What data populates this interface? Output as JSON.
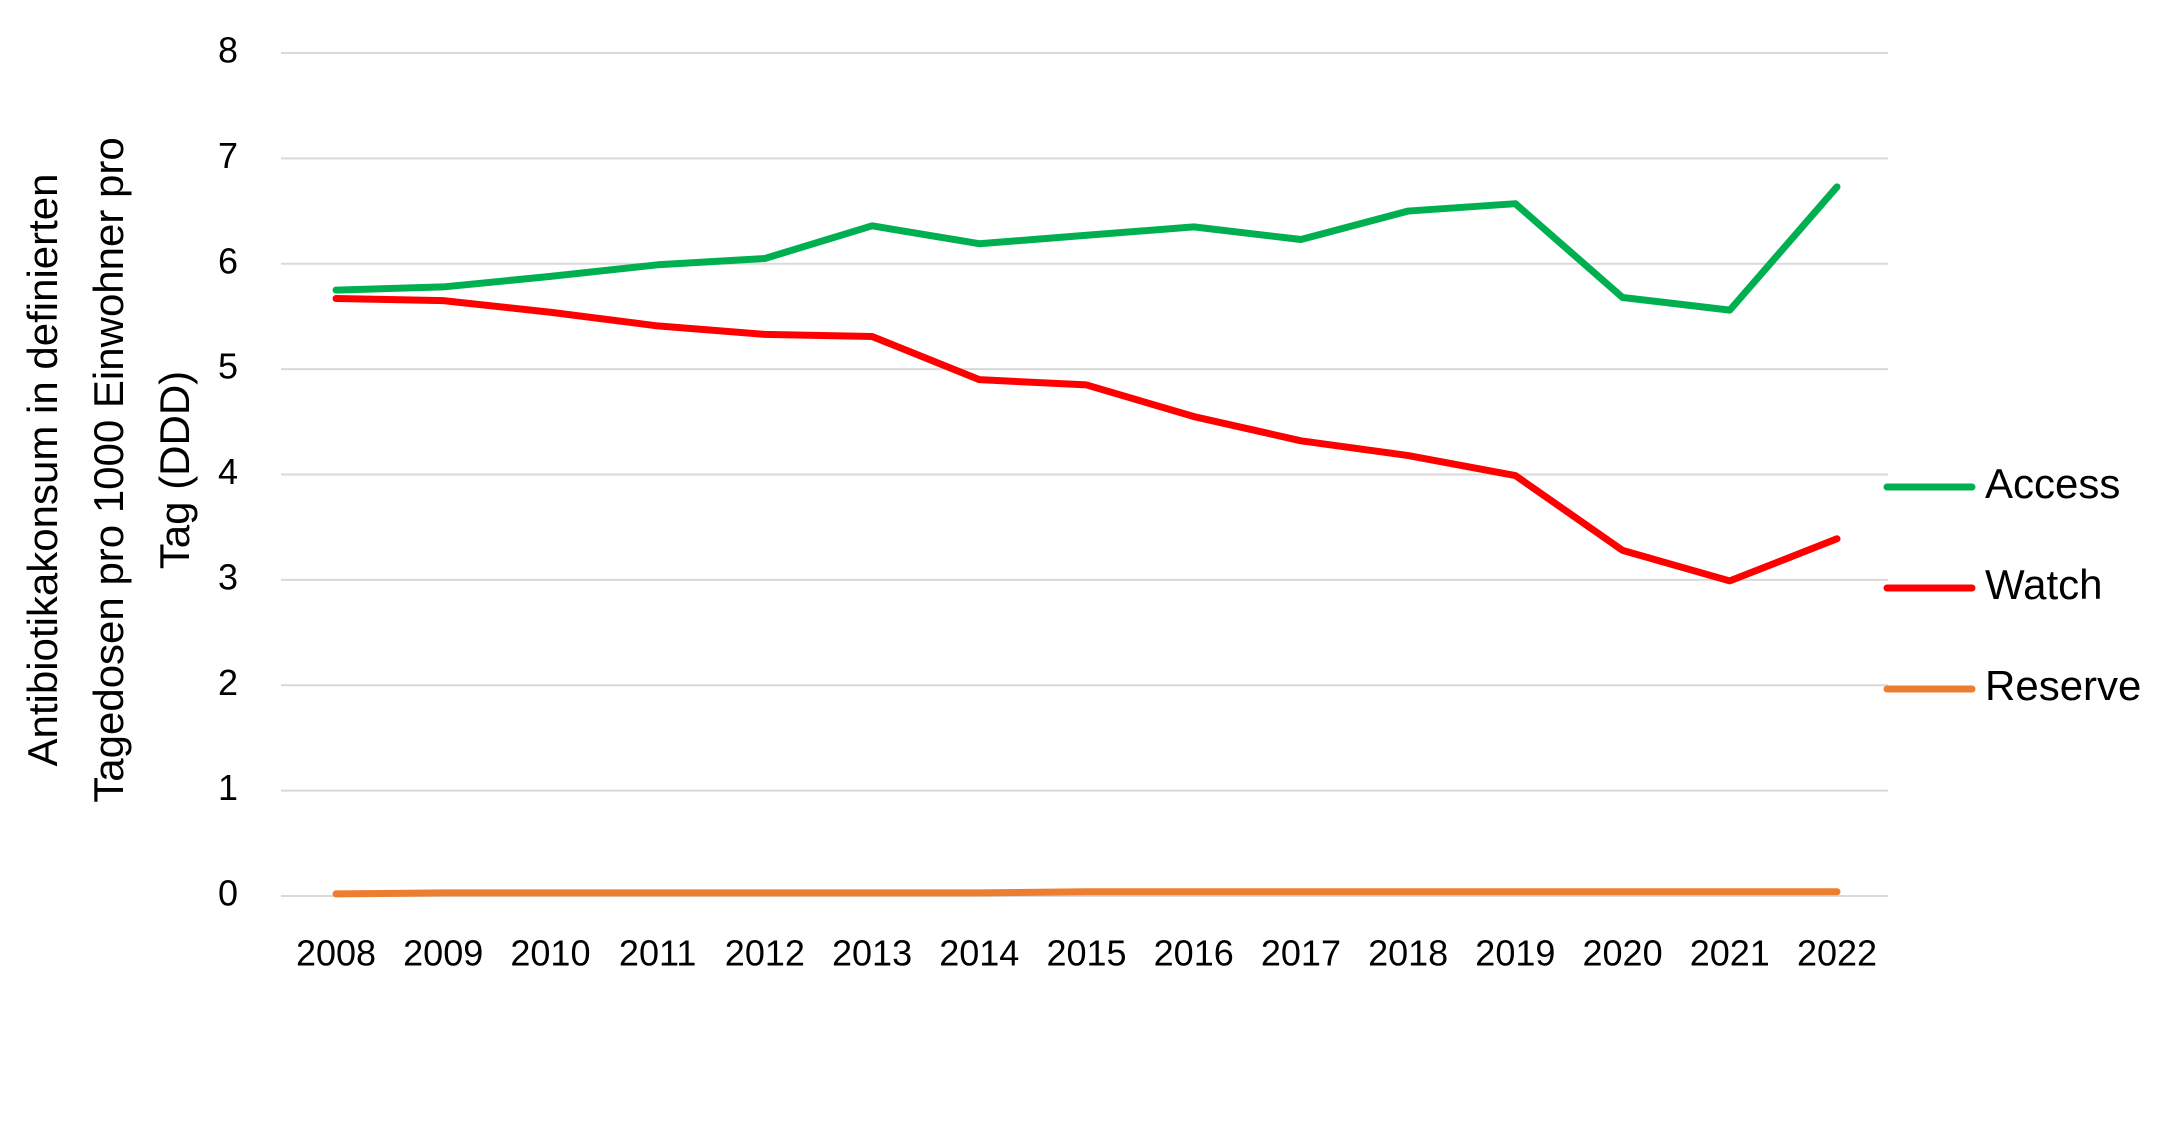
{
  "chart_data": {
    "type": "line",
    "ylabel": [
      "Antibiotikakonsum in definierten",
      "Tagedosen pro 1000 Einwohner pro",
      "Tag (DDD)"
    ],
    "categories": [
      "2008",
      "2009",
      "2010",
      "2011",
      "2012",
      "2013",
      "2014",
      "2015",
      "2016",
      "2017",
      "2018",
      "2019",
      "2020",
      "2021",
      "2022"
    ],
    "series": [
      {
        "name": "Access",
        "color": "#00b050",
        "values": [
          5.75,
          5.78,
          5.88,
          5.99,
          6.05,
          6.36,
          6.19,
          6.27,
          6.35,
          6.23,
          6.5,
          6.57,
          5.68,
          5.56,
          6.73
        ]
      },
      {
        "name": "Watch",
        "color": "#ff0000",
        "values": [
          5.67,
          5.65,
          5.54,
          5.41,
          5.33,
          5.31,
          4.9,
          4.85,
          4.55,
          4.32,
          4.18,
          3.99,
          3.28,
          2.99,
          3.39
        ]
      },
      {
        "name": "Reserve",
        "color": "#ed7d31",
        "values": [
          0.02,
          0.03,
          0.03,
          0.03,
          0.03,
          0.03,
          0.03,
          0.04,
          0.04,
          0.04,
          0.04,
          0.04,
          0.04,
          0.04,
          0.04
        ]
      }
    ],
    "ylim": [
      0,
      8
    ],
    "yticks": [
      0,
      1,
      2,
      3,
      4,
      5,
      6,
      7,
      8
    ],
    "grid": true,
    "legend": "right"
  }
}
